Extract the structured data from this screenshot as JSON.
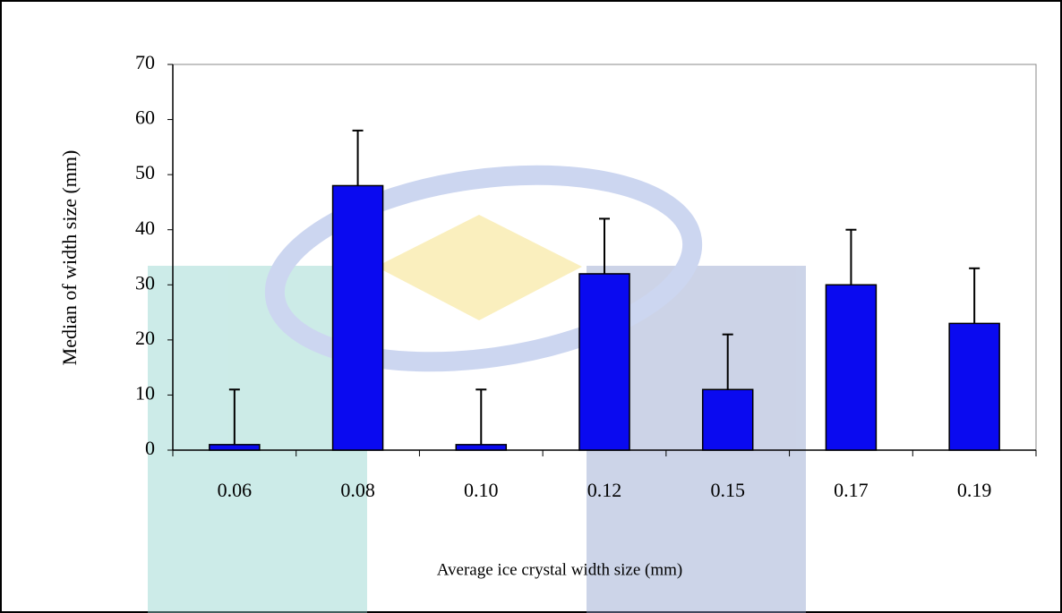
{
  "chart_data": {
    "type": "bar",
    "x_label": "Average ice crystal width size (mm)",
    "y_label": "Median of width size (mm)",
    "categories": [
      "0.06",
      "0.08",
      "0.10",
      "0.12",
      "0.15",
      "0.17",
      "0.19"
    ],
    "values": [
      1,
      48,
      1,
      32,
      11,
      30,
      23
    ],
    "errors": [
      10,
      10,
      10,
      10,
      10,
      10,
      10
    ],
    "color": "#0a0af0",
    "ylim": [
      0,
      70
    ],
    "yticks": [
      0,
      10,
      20,
      30,
      40,
      50,
      60,
      70
    ],
    "grid": false
  }
}
